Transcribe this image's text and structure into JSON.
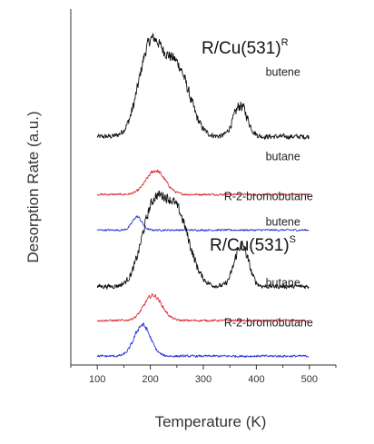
{
  "chart_data": {
    "type": "line",
    "xlabel": "Temperature (K)",
    "ylabel": "Desorption Rate (a.u.)",
    "xlim": [
      50,
      550
    ],
    "x_ticks": [
      100,
      200,
      300,
      400,
      500
    ],
    "x_minor_ticks": [
      50,
      150,
      250,
      350,
      450,
      550
    ],
    "grid": false,
    "y_units": "arbitrary, stacked offsets",
    "panels": [
      {
        "title": "R/Cu(531)",
        "title_superscript": "R",
        "series": [
          {
            "name": "butene",
            "color": "#111111",
            "baseline": 7.7,
            "peaks": [
              {
                "center": 200,
                "height": 3.0,
                "width": 22
              },
              {
                "center": 250,
                "height": 2.3,
                "width": 24
              },
              {
                "center": 370,
                "height": 1.05,
                "width": 13
              }
            ],
            "noise": 0.22
          },
          {
            "name": "butane",
            "color": "#e0303a",
            "baseline": 5.75,
            "peaks": [
              {
                "center": 210,
                "height": 0.8,
                "width": 18
              }
            ],
            "noise": 0.09
          },
          {
            "name": "R-2-bromobutane",
            "color": "#2a35d8",
            "baseline": 4.55,
            "peaks": [
              {
                "center": 175,
                "height": 0.45,
                "width": 9
              }
            ],
            "noise": 0.08
          }
        ]
      },
      {
        "title": "R/Cu(531)",
        "title_superscript": "S",
        "series": [
          {
            "name": "butene",
            "color": "#111111",
            "baseline": 2.65,
            "peaks": [
              {
                "center": 205,
                "height": 2.5,
                "width": 22
              },
              {
                "center": 250,
                "height": 2.4,
                "width": 24
              },
              {
                "center": 372,
                "height": 1.4,
                "width": 13
              }
            ],
            "noise": 0.2
          },
          {
            "name": "butane",
            "color": "#e0303a",
            "baseline": 1.5,
            "peaks": [
              {
                "center": 205,
                "height": 0.85,
                "width": 17
              }
            ],
            "noise": 0.09
          },
          {
            "name": "R-2-bromobutane",
            "color": "#2a35d8",
            "baseline": 0.3,
            "peaks": [
              {
                "center": 185,
                "height": 1.05,
                "width": 15
              }
            ],
            "noise": 0.1
          }
        ]
      }
    ]
  }
}
